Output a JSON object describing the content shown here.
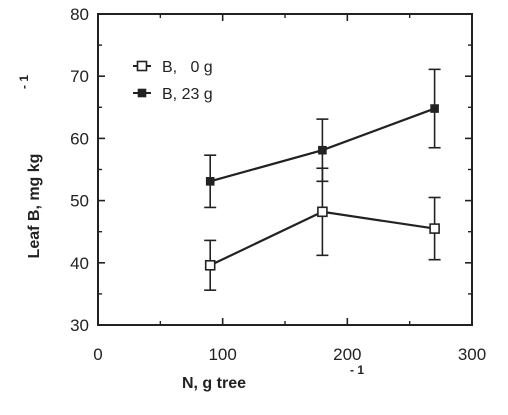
{
  "chart_data": {
    "type": "line",
    "xlabel": "N, g tree",
    "xlabel_exp": "- 1",
    "ylabel": "Leaf B, mg kg",
    "ylabel_exp": "- 1",
    "xlim": [
      0,
      300
    ],
    "ylim": [
      30,
      80
    ],
    "xticks": [
      0,
      100,
      200,
      300
    ],
    "yticks": [
      30,
      40,
      50,
      60,
      70,
      80
    ],
    "grid": false,
    "legend_position": "top-left",
    "series": [
      {
        "name": "B,   0 g",
        "marker": "open-square",
        "x": [
          90,
          180,
          270
        ],
        "y": [
          39.6,
          48.2,
          45.5
        ],
        "err": [
          4.0,
          7.0,
          5.0
        ]
      },
      {
        "name": "B, 23 g",
        "marker": "filled-square",
        "x": [
          90,
          180,
          270
        ],
        "y": [
          53.1,
          58.1,
          64.8
        ],
        "err": [
          4.2,
          5.0,
          6.3
        ]
      }
    ]
  }
}
